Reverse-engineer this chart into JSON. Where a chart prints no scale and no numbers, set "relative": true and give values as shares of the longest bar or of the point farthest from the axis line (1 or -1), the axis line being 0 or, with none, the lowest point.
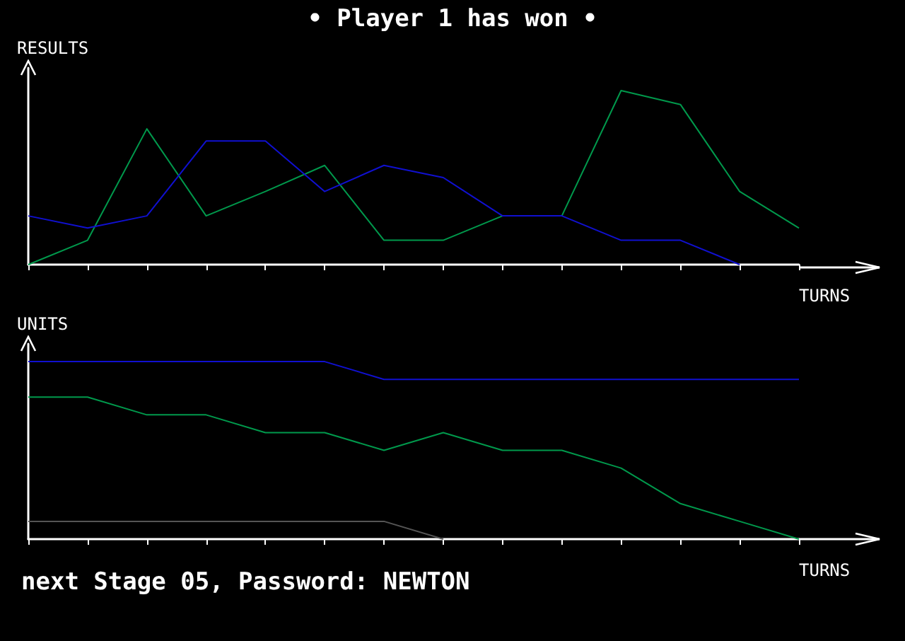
{
  "chart_data": [
    {
      "type": "line",
      "title": "• Player 1 has won •",
      "ylabel": "RESULTS",
      "xlabel": "TURNS",
      "relative": true,
      "grid": false,
      "marker": "none",
      "categories": [
        null,
        null,
        null,
        null,
        null,
        null,
        null,
        null,
        null,
        null,
        null,
        null,
        null,
        null
      ],
      "series": [
        {
          "color": "#00994c",
          "values": [
            0,
            0.14,
            0.78,
            0.28,
            0.42,
            0.57,
            0.14,
            0.14,
            0.28,
            0.28,
            1,
            0.92,
            0.42,
            0.21
          ]
        },
        {
          "color": "#1010d0",
          "values": [
            0.28,
            0.21,
            0.28,
            0.71,
            0.71,
            0.42,
            0.57,
            0.5,
            0.28,
            0.28,
            0.14,
            0.14,
            0,
            null
          ]
        }
      ]
    },
    {
      "type": "line",
      "ylabel": "UNITS",
      "xlabel": "TURNS",
      "relative": true,
      "grid": false,
      "marker": "none",
      "annotations": [
        "next Stage 05, Password: NEWTON"
      ],
      "categories": [
        null,
        null,
        null,
        null,
        null,
        null,
        null,
        null,
        null,
        null,
        null,
        null,
        null,
        null
      ],
      "series": [
        {
          "color": "#1010d0",
          "values": [
            1,
            1,
            1,
            1,
            1,
            1,
            0.9,
            0.9,
            0.9,
            0.9,
            0.9,
            0.9,
            0.9,
            0.9
          ]
        },
        {
          "color": "#00994c",
          "values": [
            0.8,
            0.8,
            0.7,
            0.7,
            0.6,
            0.6,
            0.5,
            0.6,
            0.5,
            0.5,
            0.4,
            0.2,
            0.1,
            0
          ]
        },
        {
          "color": "#555555",
          "values": [
            0.1,
            0.1,
            0.1,
            0.1,
            0.1,
            0.1,
            0.1,
            0,
            null,
            null,
            null,
            null,
            null,
            null
          ]
        }
      ]
    }
  ]
}
